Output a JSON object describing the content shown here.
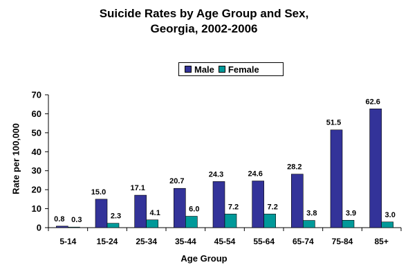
{
  "chart_data": {
    "type": "bar",
    "title": "Suicide Rates by Age Group and Sex,",
    "subtitle": "Georgia, 2002-2006",
    "xlabel": "Age Group",
    "ylabel": "Rate per 100,000",
    "ylim": [
      0,
      70
    ],
    "yticks": [
      0,
      10,
      20,
      30,
      40,
      50,
      60,
      70
    ],
    "categories": [
      "5-14",
      "15-24",
      "25-34",
      "35-44",
      "45-54",
      "55-64",
      "65-74",
      "75-84",
      "85+"
    ],
    "series": [
      {
        "name": "Male",
        "values": [
          0.8,
          15.0,
          17.1,
          20.7,
          24.3,
          24.6,
          28.2,
          51.5,
          62.6
        ],
        "labels": [
          "0.8",
          "15.0",
          "17.1",
          "20.7",
          "24.3",
          "24.6",
          "28.2",
          "51.5",
          "62.6"
        ],
        "color": "#333399"
      },
      {
        "name": "Female",
        "values": [
          0.3,
          2.3,
          4.1,
          6.0,
          7.2,
          7.2,
          3.8,
          3.9,
          3.0
        ],
        "labels": [
          "0.3",
          "2.3",
          "4.1",
          "6.0",
          "7.2",
          "7.2",
          "3.8",
          "3.9",
          "3.0"
        ],
        "color": "#009999"
      }
    ],
    "legend": {
      "position": "top",
      "entries": [
        "Male",
        "Female"
      ]
    },
    "grid": false
  }
}
